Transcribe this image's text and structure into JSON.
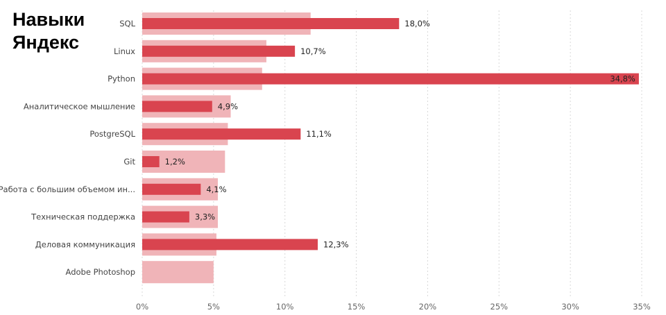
{
  "title": {
    "line1": "Навыки",
    "line2": "Яндекс"
  },
  "colors": {
    "primary_bar": "#d9444f",
    "background_bar": "#f0b4b8",
    "grid": "#d8d8d8"
  },
  "chart_data": {
    "type": "bar",
    "orientation": "horizontal",
    "categories": [
      "SQL",
      "Linux",
      "Python",
      "Аналитическое мышление",
      "PostgreSQL",
      "Git",
      "Работа с большим объемом ин...",
      "Техническая поддержка",
      "Деловая коммуникация",
      "Adobe Photoshop"
    ],
    "series": [
      {
        "values": [
          18.0,
          10.7,
          34.8,
          4.9,
          11.1,
          1.2,
          4.1,
          3.3,
          12.3,
          null
        ],
        "labels": [
          "18,0%",
          "10,7%",
          "34,8%",
          "4,9%",
          "11,1%",
          "1,2%",
          "4,1%",
          "3,3%",
          "12,3%",
          ""
        ],
        "color": "#d9444f",
        "role": "front"
      },
      {
        "values": [
          11.8,
          8.7,
          8.4,
          6.2,
          6.0,
          5.8,
          5.3,
          5.3,
          5.2,
          5.0
        ],
        "color": "#f0b4b8",
        "role": "back"
      }
    ],
    "xlim": [
      0,
      35
    ],
    "xticks": [
      0,
      5,
      10,
      15,
      20,
      25,
      30,
      35
    ],
    "xtick_labels": [
      "0%",
      "5%",
      "10%",
      "15%",
      "20%",
      "25%",
      "30%",
      "35%"
    ],
    "grid": "vertical dotted",
    "legend": "none"
  }
}
